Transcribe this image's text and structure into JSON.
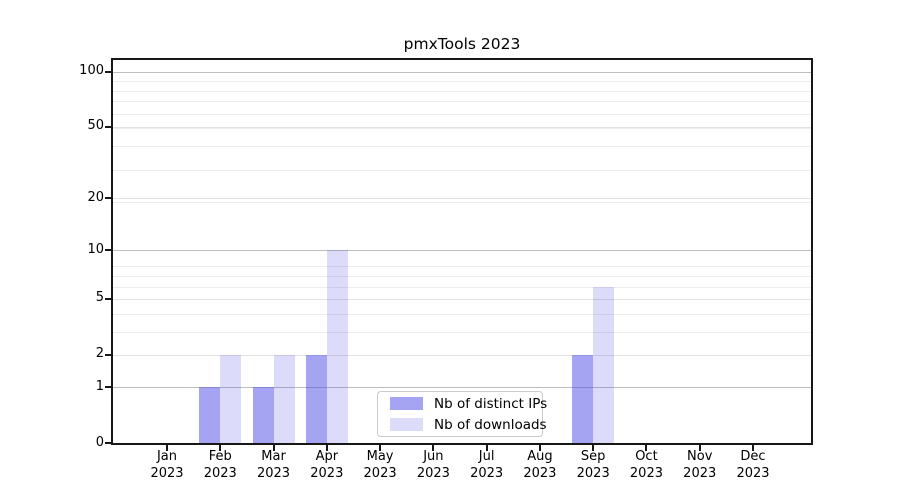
{
  "title": "pmxTools 2023",
  "chart_data": {
    "type": "bar",
    "title": "pmxTools 2023",
    "categories": [
      "Jan",
      "Feb",
      "Mar",
      "Apr",
      "May",
      "Jun",
      "Jul",
      "Aug",
      "Sep",
      "Oct",
      "Nov",
      "Dec"
    ],
    "category_year": "2023",
    "series": [
      {
        "name": "Nb of distinct IPs",
        "color": "rgba(80,80,230,0.52)",
        "values": [
          0,
          1,
          1,
          2,
          0,
          0,
          0,
          0,
          2,
          0,
          0,
          0
        ]
      },
      {
        "name": "Nb of downloads",
        "color": "rgba(80,80,230,0.20)",
        "values": [
          0,
          2,
          2,
          10,
          0,
          0,
          0,
          0,
          6,
          0,
          0,
          0
        ]
      }
    ],
    "yscale": "log1p",
    "ylim": [
      0,
      116
    ],
    "y_ticks": [
      0,
      1,
      2,
      5,
      10,
      20,
      50,
      100
    ],
    "y_emphasis_ticks": [
      1,
      10,
      100
    ],
    "y_minor_gridlines_1p": [
      3,
      4,
      5,
      6,
      7,
      8,
      9,
      20,
      30,
      40,
      50,
      60,
      70,
      80,
      90
    ],
    "grid": true,
    "legend_position": "lower center"
  },
  "colors": {
    "grid_minor": "#ededed",
    "grid_labeled": "#e2e2e2",
    "grid_major": "#bdbdbd",
    "axis": "#171717",
    "legend_border": "#cbcbcb"
  }
}
